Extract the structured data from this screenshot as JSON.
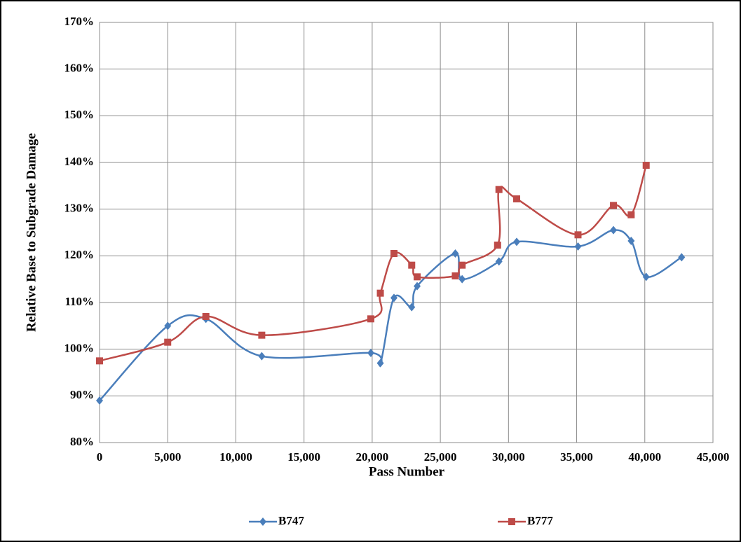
{
  "chart_data": {
    "type": "line",
    "xlabel": "Pass Number",
    "ylabel": "Relative Base to Subgrade Damage",
    "xlim": [
      0,
      45000
    ],
    "ylim": [
      80,
      170
    ],
    "xticks": [
      0,
      {
        "value": 5000,
        "label": "5,000"
      },
      {
        "value": 10000,
        "label": "10,000"
      },
      {
        "value": 15000,
        "label": "15,000"
      },
      {
        "value": 20000,
        "label": "20,000"
      },
      {
        "value": 25000,
        "label": "25,000"
      },
      {
        "value": 30000,
        "label": "30,000"
      },
      {
        "value": 35000,
        "label": "35,000"
      },
      {
        "value": 40000,
        "label": "40,000"
      },
      {
        "value": 45000,
        "label": "45,000"
      }
    ],
    "yticks": [
      {
        "value": 80,
        "label": "80%"
      },
      {
        "value": 90,
        "label": "90%"
      },
      {
        "value": 100,
        "label": "100%"
      },
      {
        "value": 110,
        "label": "110%"
      },
      {
        "value": 120,
        "label": "120%"
      },
      {
        "value": 130,
        "label": "130%"
      },
      {
        "value": 140,
        "label": "140%"
      },
      {
        "value": 150,
        "label": "150%"
      },
      {
        "value": 160,
        "label": "160%"
      },
      {
        "value": 170,
        "label": "170%"
      }
    ],
    "grid": true,
    "legend": "bottom",
    "series": [
      {
        "name": "B747",
        "color": "#4a7ebb",
        "marker": "diamond",
        "x": [
          0,
          5000,
          7800,
          11900,
          19900,
          20600,
          21600,
          22900,
          23300,
          26100,
          26600,
          29300,
          30600,
          35100,
          37700,
          39000,
          40100,
          42700
        ],
        "values": [
          89,
          105,
          106.5,
          98.5,
          99.2,
          97,
          111,
          109,
          113.5,
          120.5,
          115,
          118.8,
          123,
          122,
          125.5,
          123.2,
          115.5,
          119.7
        ]
      },
      {
        "name": "B777",
        "color": "#be4b48",
        "marker": "square",
        "x": [
          0,
          5000,
          7800,
          11900,
          19900,
          20600,
          21600,
          22900,
          23300,
          26100,
          26600,
          29200,
          29300,
          30600,
          35100,
          37700,
          39000,
          40100
        ],
        "values": [
          97.5,
          101.5,
          107,
          103,
          106.5,
          112,
          120.5,
          118,
          115.5,
          115.7,
          118,
          122.3,
          134.2,
          132.2,
          124.5,
          130.8,
          128.8,
          139.4
        ]
      }
    ]
  }
}
